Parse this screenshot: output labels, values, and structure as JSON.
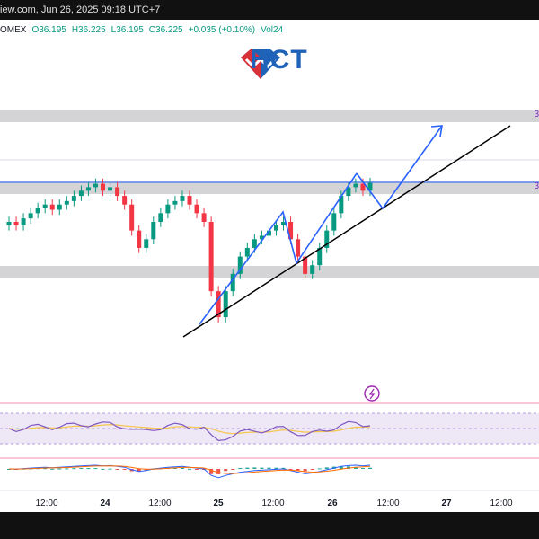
{
  "header": {
    "title": "iew.com, Jun 26, 2025 09:18 UTC+7"
  },
  "ohlc": {
    "symbol": "OMEX",
    "open": "O36.195",
    "high": "H36.225",
    "low": "L36.195",
    "close": "C36.225",
    "change": "+0.035 (+0.10%)",
    "volume": "Vol24"
  },
  "logo": {
    "text": "HCT",
    "brand_color": "#1f63b8",
    "accent_color": "#d9313a"
  },
  "price_labels": {
    "upper": "3",
    "middle": "3"
  },
  "colors": {
    "up": "#089981",
    "down": "#f23645",
    "zone": "#c9c9cd",
    "trend_arrow": "#2962ff",
    "trendline": "#000000",
    "rsi_line": "#7e57c2",
    "rsi_ma": "#f7c548",
    "rsi_band_fill": "#ede7f6"
  },
  "chart_data": {
    "type": "candlestick",
    "x_ticks": [
      "12:00",
      "24",
      "12:00",
      "25",
      "12:00",
      "26",
      "12:00",
      "27",
      "12:00"
    ],
    "price_zones": [
      {
        "name": "resistance_upper",
        "approx_price": 36.55
      },
      {
        "name": "resistance_mid",
        "approx_price": 36.2
      },
      {
        "name": "support",
        "approx_price": 35.55
      }
    ],
    "candles_close_estimate": [
      36.0,
      35.98,
      36.02,
      36.05,
      36.08,
      36.1,
      36.07,
      36.1,
      36.12,
      36.15,
      36.18,
      36.2,
      36.22,
      36.18,
      36.2,
      36.15,
      36.1,
      35.95,
      35.85,
      35.9,
      36.0,
      36.05,
      36.1,
      36.12,
      36.15,
      36.1,
      36.05,
      36.0,
      35.6,
      35.45,
      35.6,
      35.7,
      35.8,
      35.85,
      35.9,
      35.92,
      35.95,
      35.98,
      36.0,
      35.9,
      35.8,
      35.7,
      35.75,
      35.85,
      35.95,
      36.05,
      36.15,
      36.2,
      36.22,
      36.18,
      36.225
    ]
  }
}
